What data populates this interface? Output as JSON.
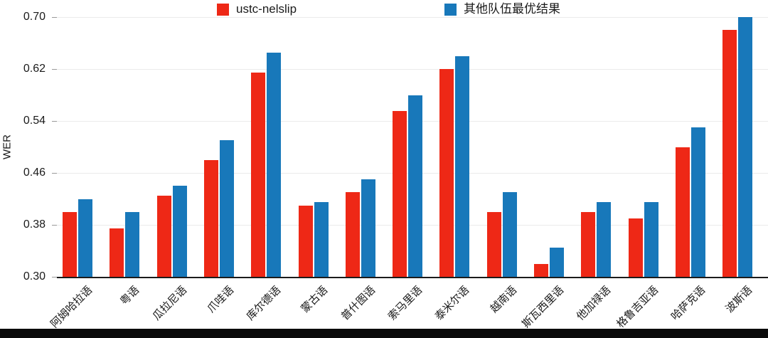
{
  "page": {
    "background": "#ffffff",
    "bottom_bar_color": "#0a0a0a"
  },
  "legend": [
    {
      "label": "ustc-nelslip",
      "color": "#ee2816"
    },
    {
      "label": "其他队伍最优结果",
      "color": "#1878ba"
    }
  ],
  "chart_data": {
    "type": "bar",
    "title": "",
    "xlabel": "",
    "ylabel": "WER",
    "ylim": [
      0.3,
      0.7
    ],
    "yticks": [
      0.3,
      0.38,
      0.46,
      0.54,
      0.62,
      0.7
    ],
    "grid": true,
    "legend_position": "top",
    "categories": [
      "阿姆哈拉语",
      "粤语",
      "瓜拉尼语",
      "爪哇语",
      "库尔德语",
      "蒙古语",
      "普什图语",
      "索马里语",
      "泰米尔语",
      "越南语",
      "斯瓦西里语",
      "他加禄语",
      "格鲁吉亚语",
      "哈萨克语",
      "波斯语"
    ],
    "series": [
      {
        "name": "ustc-nelslip",
        "color": "#ee2816",
        "values": [
          0.4,
          0.375,
          0.425,
          0.48,
          0.615,
          0.41,
          0.43,
          0.555,
          0.62,
          0.4,
          0.32,
          0.4,
          0.39,
          0.5,
          0.68
        ]
      },
      {
        "name": "其他队伍最优结果",
        "color": "#1878ba",
        "values": [
          0.42,
          0.4,
          0.44,
          0.51,
          0.645,
          0.415,
          0.45,
          0.58,
          0.64,
          0.43,
          0.345,
          0.415,
          0.415,
          0.53,
          0.7
        ]
      }
    ]
  }
}
